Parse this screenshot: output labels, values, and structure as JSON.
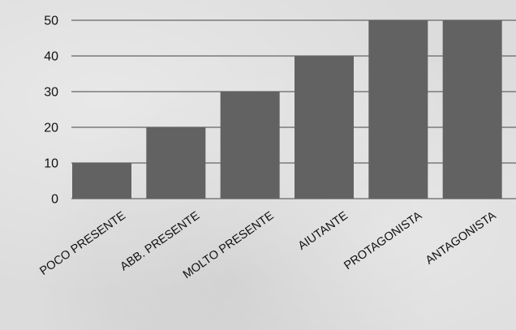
{
  "chart_data": {
    "type": "bar",
    "categories": [
      "POCO PRESENTE",
      "ABB. PRESENTE",
      "MOLTO PRESENTE",
      "AIUTANTE",
      "PROTAGONISTA",
      "ANTAGONISTA"
    ],
    "values": [
      10,
      20,
      30,
      40,
      50,
      50
    ],
    "title": "",
    "xlabel": "",
    "ylabel": "",
    "ylim": [
      0,
      50
    ],
    "yticks": [
      0,
      10,
      20,
      30,
      40,
      50
    ],
    "grid": true,
    "legend": "none",
    "bar_color": "#626262",
    "grid_color": "#7a7a7a"
  }
}
